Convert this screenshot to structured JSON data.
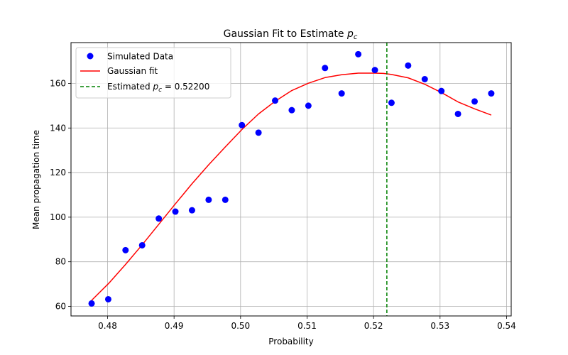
{
  "chart_data": {
    "type": "scatter",
    "title": "Gaussian Fit to Estimate p_c",
    "title_main": "Gaussian Fit to Estimate ",
    "title_symbol": "p",
    "title_sub": "c",
    "xlabel": "Probability",
    "ylabel": "Mean propagation time",
    "xlim": [
      0.4745,
      0.5407
    ],
    "ylim": [
      55.7,
      178.3
    ],
    "xticks": [
      0.48,
      0.49,
      0.5,
      0.51,
      0.52,
      0.53,
      0.54
    ],
    "xtick_labels": [
      "0.48",
      "0.49",
      "0.50",
      "0.51",
      "0.52",
      "0.53",
      "0.54"
    ],
    "yticks": [
      60,
      80,
      100,
      120,
      140,
      160
    ],
    "ytick_labels": [
      "60",
      "80",
      "100",
      "120",
      "140",
      "160"
    ],
    "grid": true,
    "legend_position": "top-left",
    "series": [
      {
        "name": "Simulated Data",
        "kind": "scatter",
        "color": "#0000ff",
        "x": [
          0.4776,
          0.4801,
          0.4827,
          0.4852,
          0.4877,
          0.4902,
          0.4927,
          0.4952,
          0.4977,
          0.5002,
          0.5027,
          0.5052,
          0.5077,
          0.5102,
          0.5127,
          0.5152,
          0.5177,
          0.5202,
          0.5227,
          0.5252,
          0.5277,
          0.5302,
          0.5327,
          0.5352,
          0.5377
        ],
        "y": [
          61.3,
          63.2,
          85.2,
          87.4,
          99.4,
          102.5,
          103.1,
          107.8,
          107.8,
          141.3,
          137.9,
          152.3,
          148.0,
          150.0,
          166.9,
          155.5,
          173.1,
          166.0,
          151.3,
          168.0,
          161.9,
          156.6,
          146.3,
          151.9,
          155.5
        ]
      },
      {
        "name": "Gaussian fit",
        "kind": "line",
        "color": "#ff0000",
        "x": [
          0.4776,
          0.4802,
          0.4827,
          0.4852,
          0.4877,
          0.4902,
          0.4927,
          0.4952,
          0.4977,
          0.5002,
          0.5027,
          0.5052,
          0.5077,
          0.5102,
          0.5127,
          0.5152,
          0.5177,
          0.5202,
          0.5215,
          0.5227,
          0.5252,
          0.5277,
          0.5302,
          0.5327,
          0.5352,
          0.5377
        ],
        "y": [
          62.7,
          70.4,
          78.8,
          87.6,
          96.8,
          106.0,
          115.0,
          123.5,
          131.5,
          139.3,
          146.3,
          152.0,
          156.8,
          160.1,
          162.6,
          163.9,
          164.6,
          164.6,
          164.5,
          164.0,
          162.5,
          159.6,
          155.9,
          151.7,
          148.6,
          145.8
        ]
      },
      {
        "name": "Estimated p_c = 0.52200",
        "legend_main": "Estimated ",
        "legend_symbol": "p",
        "legend_sub": "c",
        "legend_value": " = 0.52200",
        "kind": "vline",
        "color": "#008000",
        "x": 0.522
      }
    ]
  }
}
